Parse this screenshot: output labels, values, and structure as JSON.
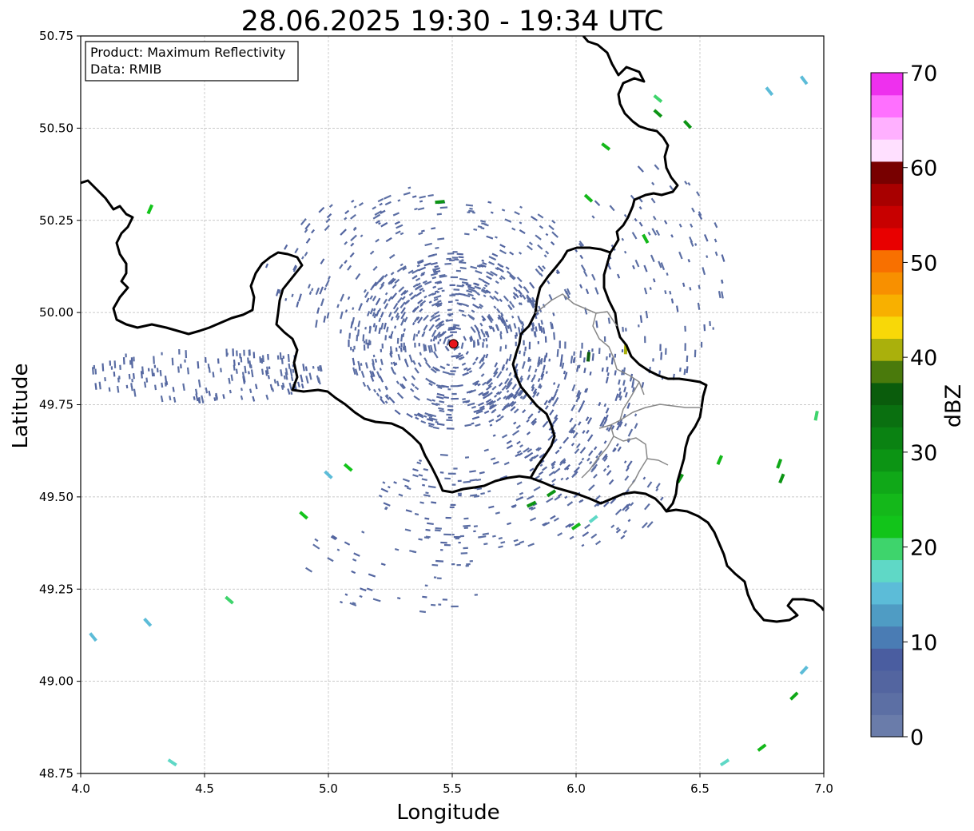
{
  "title": "28.06.2025 19:30 - 19:34 UTC",
  "info_box": {
    "product": "Product: Maximum Reflectivity",
    "data": "Data: RMIB"
  },
  "axes": {
    "xlabel": "Longitude",
    "ylabel": "Latitude",
    "xlim": [
      4.0,
      7.0
    ],
    "ylim": [
      48.75,
      50.75
    ],
    "x_ticks": [
      "4.0",
      "4.5",
      "5.0",
      "5.5",
      "6.0",
      "6.5",
      "7.0"
    ],
    "y_ticks": [
      "48.75",
      "49.00",
      "49.25",
      "49.50",
      "49.75",
      "50.00",
      "50.25",
      "50.50",
      "50.75"
    ],
    "grid": true
  },
  "radar_site": {
    "lon": 5.505,
    "lat": 49.915,
    "color": "#e8141c"
  },
  "colorbar": {
    "label": "dBZ",
    "ticks": [
      "0",
      "10",
      "20",
      "30",
      "40",
      "50",
      "60",
      "70"
    ],
    "range": [
      0,
      70
    ],
    "colors": [
      "#6a7caa",
      "#5c6fa4",
      "#5365a0",
      "#4a5da0",
      "#4a7cb4",
      "#4f9cc4",
      "#5cbcd8",
      "#5fd8c6",
      "#3ed46c",
      "#12c41a",
      "#14b81a",
      "#10a818",
      "#0c9414",
      "#0a8212",
      "#0a7010",
      "#0a5c0c",
      "#4a7a0c",
      "#aab00c",
      "#f8d808",
      "#f8b000",
      "#f89000",
      "#f87000",
      "#e80000",
      "#c80000",
      "#a80000",
      "#780000",
      "#ffe0ff",
      "#ffb0ff",
      "#ff70ff",
      "#ee30ee"
    ]
  },
  "chart_data": {
    "type": "heatmap",
    "title": "28.06.2025 19:30 - 19:34 UTC",
    "xlabel": "Longitude",
    "ylabel": "Latitude",
    "xlim": [
      4.0,
      7.0
    ],
    "ylim": [
      48.75,
      50.75
    ],
    "colorbar_label": "dBZ",
    "colorbar_range": [
      0,
      70
    ],
    "annotations": [
      "Product: Maximum Reflectivity",
      "Data: RMIB"
    ],
    "radar_site": [
      5.505,
      49.915
    ],
    "echo_regions": [
      {
        "lon": 5.5,
        "lat": 49.92,
        "rx": 0.42,
        "ry": 0.24,
        "dbz": 3,
        "density": 0.55
      },
      {
        "lon": 4.5,
        "lat": 49.83,
        "rx": 0.5,
        "ry": 0.07,
        "dbz": 3,
        "density": 0.45
      },
      {
        "lon": 5.95,
        "lat": 49.75,
        "rx": 0.32,
        "ry": 0.18,
        "dbz": 4,
        "density": 0.35
      },
      {
        "lon": 5.4,
        "lat": 50.12,
        "rx": 0.65,
        "ry": 0.22,
        "dbz": 3,
        "density": 0.18
      },
      {
        "lon": 5.8,
        "lat": 49.5,
        "rx": 0.6,
        "ry": 0.15,
        "dbz": 3,
        "density": 0.2
      },
      {
        "lon": 5.3,
        "lat": 49.32,
        "rx": 0.4,
        "ry": 0.14,
        "dbz": 3,
        "density": 0.1
      },
      {
        "lon": 6.3,
        "lat": 50.1,
        "rx": 0.3,
        "ry": 0.3,
        "dbz": 3,
        "density": 0.12
      }
    ],
    "convective_cells": [
      [
        4.28,
        50.28,
        22
      ],
      [
        5.45,
        50.3,
        30
      ],
      [
        6.05,
        50.31,
        24
      ],
      [
        6.28,
        50.2,
        25
      ],
      [
        6.45,
        50.51,
        30
      ],
      [
        6.33,
        50.54,
        28
      ],
      [
        6.2,
        49.9,
        40
      ],
      [
        6.05,
        49.88,
        36
      ],
      [
        6.42,
        49.55,
        28
      ],
      [
        6.58,
        49.6,
        24
      ],
      [
        6.82,
        49.59,
        26
      ],
      [
        6.83,
        49.55,
        30
      ],
      [
        6.0,
        49.42,
        24
      ],
      [
        6.07,
        49.44,
        18
      ],
      [
        4.6,
        49.22,
        20
      ],
      [
        5.0,
        49.56,
        16
      ],
      [
        4.9,
        49.45,
        22
      ],
      [
        6.92,
        49.03,
        14
      ],
      [
        6.88,
        48.96,
        26
      ],
      [
        6.75,
        48.82,
        24
      ],
      [
        6.6,
        48.78,
        18
      ],
      [
        6.33,
        50.58,
        20
      ],
      [
        4.27,
        49.16,
        15
      ],
      [
        4.05,
        49.12,
        14
      ],
      [
        5.08,
        49.58,
        22
      ],
      [
        5.82,
        49.48,
        30
      ],
      [
        5.9,
        49.51,
        28
      ],
      [
        6.97,
        49.72,
        20
      ],
      [
        6.92,
        50.63,
        16
      ],
      [
        6.78,
        50.6,
        14
      ],
      [
        4.37,
        48.78,
        18
      ],
      [
        6.12,
        50.45,
        24
      ]
    ]
  }
}
